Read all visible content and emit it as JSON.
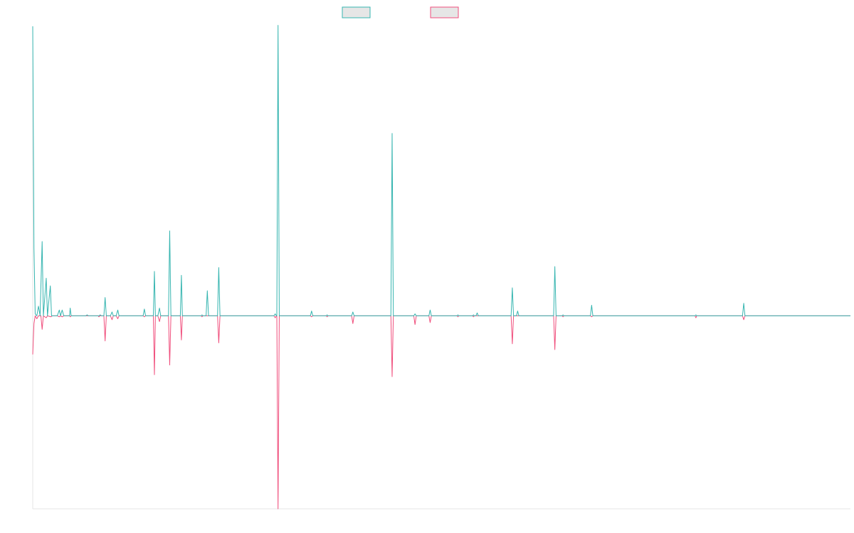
{
  "chart_data": {
    "type": "line",
    "title": "",
    "xlabel": "",
    "ylabel": "",
    "xlim": [
      0,
      1000
    ],
    "ylim": [
      -200,
      300
    ],
    "grid": false,
    "legend_position": "top-center",
    "series": [
      {
        "name": "",
        "color": "#36b5b0",
        "legend_fill": "#e6e6e6",
        "points": [
          [
            0,
            300
          ],
          [
            1.5,
            70
          ],
          [
            3,
            2
          ],
          [
            5,
            0
          ],
          [
            7,
            10
          ],
          [
            9,
            0
          ],
          [
            11.5,
            77
          ],
          [
            13,
            0
          ],
          [
            16.5,
            39
          ],
          [
            18,
            0
          ],
          [
            21.5,
            31
          ],
          [
            23,
            0
          ],
          [
            30,
            0
          ],
          [
            32.5,
            6
          ],
          [
            34,
            0
          ],
          [
            36,
            6
          ],
          [
            38,
            0
          ],
          [
            45,
            0
          ],
          [
            45.8,
            8
          ],
          [
            47,
            0
          ],
          [
            65,
            0
          ],
          [
            66.5,
            1
          ],
          [
            68,
            0
          ],
          [
            81,
            0
          ],
          [
            82.5,
            1
          ],
          [
            84,
            0
          ],
          [
            87,
            0
          ],
          [
            88.5,
            19
          ],
          [
            90,
            0
          ],
          [
            95,
            0
          ],
          [
            97,
            4
          ],
          [
            98.5,
            0
          ],
          [
            102,
            0
          ],
          [
            104,
            6
          ],
          [
            105.5,
            0
          ],
          [
            135,
            0
          ],
          [
            136.5,
            7
          ],
          [
            138,
            0
          ],
          [
            147.5,
            0
          ],
          [
            148.8,
            46
          ],
          [
            150,
            0
          ],
          [
            153,
            0
          ],
          [
            155,
            8
          ],
          [
            156.5,
            0
          ],
          [
            166,
            0
          ],
          [
            167.5,
            88
          ],
          [
            169,
            0
          ],
          [
            180.5,
            0
          ],
          [
            181.8,
            42
          ],
          [
            183,
            0
          ],
          [
            206,
            0
          ],
          [
            207,
            1
          ],
          [
            208,
            0
          ],
          [
            212,
            0
          ],
          [
            213.5,
            26
          ],
          [
            215,
            0
          ],
          [
            226,
            0
          ],
          [
            227.5,
            50
          ],
          [
            229,
            0
          ],
          [
            295,
            0
          ],
          [
            296.5,
            2
          ],
          [
            298,
            0
          ],
          [
            298.5,
            0
          ],
          [
            300,
            301
          ],
          [
            301.5,
            0
          ],
          [
            339.5,
            0
          ],
          [
            341,
            5
          ],
          [
            342.5,
            0
          ],
          [
            359,
            0
          ],
          [
            360,
            1
          ],
          [
            361,
            0
          ],
          [
            390,
            0
          ],
          [
            391.5,
            4
          ],
          [
            393,
            0
          ],
          [
            438,
            0
          ],
          [
            439.5,
            189
          ],
          [
            441,
            0
          ],
          [
            466,
            0
          ],
          [
            467.5,
            2
          ],
          [
            469,
            0
          ],
          [
            484.5,
            0
          ],
          [
            486,
            6
          ],
          [
            487.5,
            0
          ],
          [
            519,
            0
          ],
          [
            520,
            1
          ],
          [
            521,
            0
          ],
          [
            538,
            0
          ],
          [
            539,
            1
          ],
          [
            540,
            0
          ],
          [
            542,
            0
          ],
          [
            543.5,
            3
          ],
          [
            545,
            0
          ],
          [
            585,
            0
          ],
          [
            586.5,
            29
          ],
          [
            588,
            0
          ],
          [
            591.5,
            0
          ],
          [
            593,
            5
          ],
          [
            594.5,
            0
          ],
          [
            637,
            0
          ],
          [
            638.5,
            51
          ],
          [
            640,
            0
          ],
          [
            647.5,
            0
          ],
          [
            648.5,
            1
          ],
          [
            649.5,
            0
          ],
          [
            682,
            0
          ],
          [
            683.5,
            11
          ],
          [
            685,
            0
          ],
          [
            810,
            0
          ],
          [
            811,
            1
          ],
          [
            812,
            0
          ],
          [
            868,
            0
          ],
          [
            869.5,
            13
          ],
          [
            871,
            0
          ],
          [
            1000,
            0
          ]
        ]
      },
      {
        "name": "",
        "color": "#f04e7c",
        "legend_fill": "#e6e6e6",
        "points": [
          [
            0,
            -40
          ],
          [
            1.5,
            -8
          ],
          [
            3,
            0
          ],
          [
            5,
            -3
          ],
          [
            7,
            0
          ],
          [
            10,
            0
          ],
          [
            11.5,
            -14
          ],
          [
            13,
            0
          ],
          [
            16.5,
            -2
          ],
          [
            18,
            0
          ],
          [
            22,
            -1
          ],
          [
            24,
            0
          ],
          [
            30,
            0
          ],
          [
            32.5,
            -1
          ],
          [
            34,
            0
          ],
          [
            36,
            -1
          ],
          [
            38,
            0
          ],
          [
            45,
            0
          ],
          [
            46,
            -1
          ],
          [
            47,
            0
          ],
          [
            80,
            0
          ],
          [
            81,
            -1
          ],
          [
            82,
            0
          ],
          [
            87,
            0
          ],
          [
            88.5,
            -26
          ],
          [
            90,
            0
          ],
          [
            95,
            0
          ],
          [
            97,
            -4
          ],
          [
            98.5,
            0
          ],
          [
            102,
            0
          ],
          [
            104,
            -3
          ],
          [
            105.5,
            0
          ],
          [
            135,
            0
          ],
          [
            136.5,
            -1
          ],
          [
            138,
            0
          ],
          [
            147.5,
            0
          ],
          [
            148.8,
            -61
          ],
          [
            150,
            0
          ],
          [
            153,
            0
          ],
          [
            155,
            -6
          ],
          [
            156.5,
            0
          ],
          [
            166,
            0
          ],
          [
            167.5,
            -51
          ],
          [
            169,
            0
          ],
          [
            180.5,
            0
          ],
          [
            181.8,
            -25
          ],
          [
            183,
            0
          ],
          [
            206,
            0
          ],
          [
            207,
            -1
          ],
          [
            208,
            0
          ],
          [
            226,
            0
          ],
          [
            227.5,
            -28
          ],
          [
            229,
            0
          ],
          [
            295,
            0
          ],
          [
            296.5,
            -2
          ],
          [
            298,
            0
          ],
          [
            298.5,
            0
          ],
          [
            300,
            -200
          ],
          [
            301.5,
            0
          ],
          [
            339.5,
            0
          ],
          [
            341,
            -1
          ],
          [
            342.5,
            0
          ],
          [
            359,
            0
          ],
          [
            360,
            -1
          ],
          [
            361,
            0
          ],
          [
            390,
            0
          ],
          [
            391.5,
            -8
          ],
          [
            393,
            0
          ],
          [
            438,
            0
          ],
          [
            439.5,
            -63
          ],
          [
            441,
            0
          ],
          [
            466,
            0
          ],
          [
            467.5,
            -9
          ],
          [
            469,
            0
          ],
          [
            484.5,
            0
          ],
          [
            486,
            -7
          ],
          [
            487.5,
            0
          ],
          [
            519,
            0
          ],
          [
            520,
            -1
          ],
          [
            521,
            0
          ],
          [
            538,
            0
          ],
          [
            539,
            -1
          ],
          [
            540,
            0
          ],
          [
            585,
            0
          ],
          [
            586.5,
            -29
          ],
          [
            588,
            0
          ],
          [
            637,
            0
          ],
          [
            638.5,
            -35
          ],
          [
            640,
            0
          ],
          [
            647.5,
            0
          ],
          [
            648.5,
            -1
          ],
          [
            649.5,
            0
          ],
          [
            682,
            0
          ],
          [
            683.5,
            -1
          ],
          [
            685,
            0
          ],
          [
            810,
            0
          ],
          [
            811,
            -2
          ],
          [
            812,
            0
          ],
          [
            868,
            0
          ],
          [
            869.5,
            -4
          ],
          [
            871,
            0
          ],
          [
            1000,
            0
          ]
        ]
      }
    ]
  }
}
